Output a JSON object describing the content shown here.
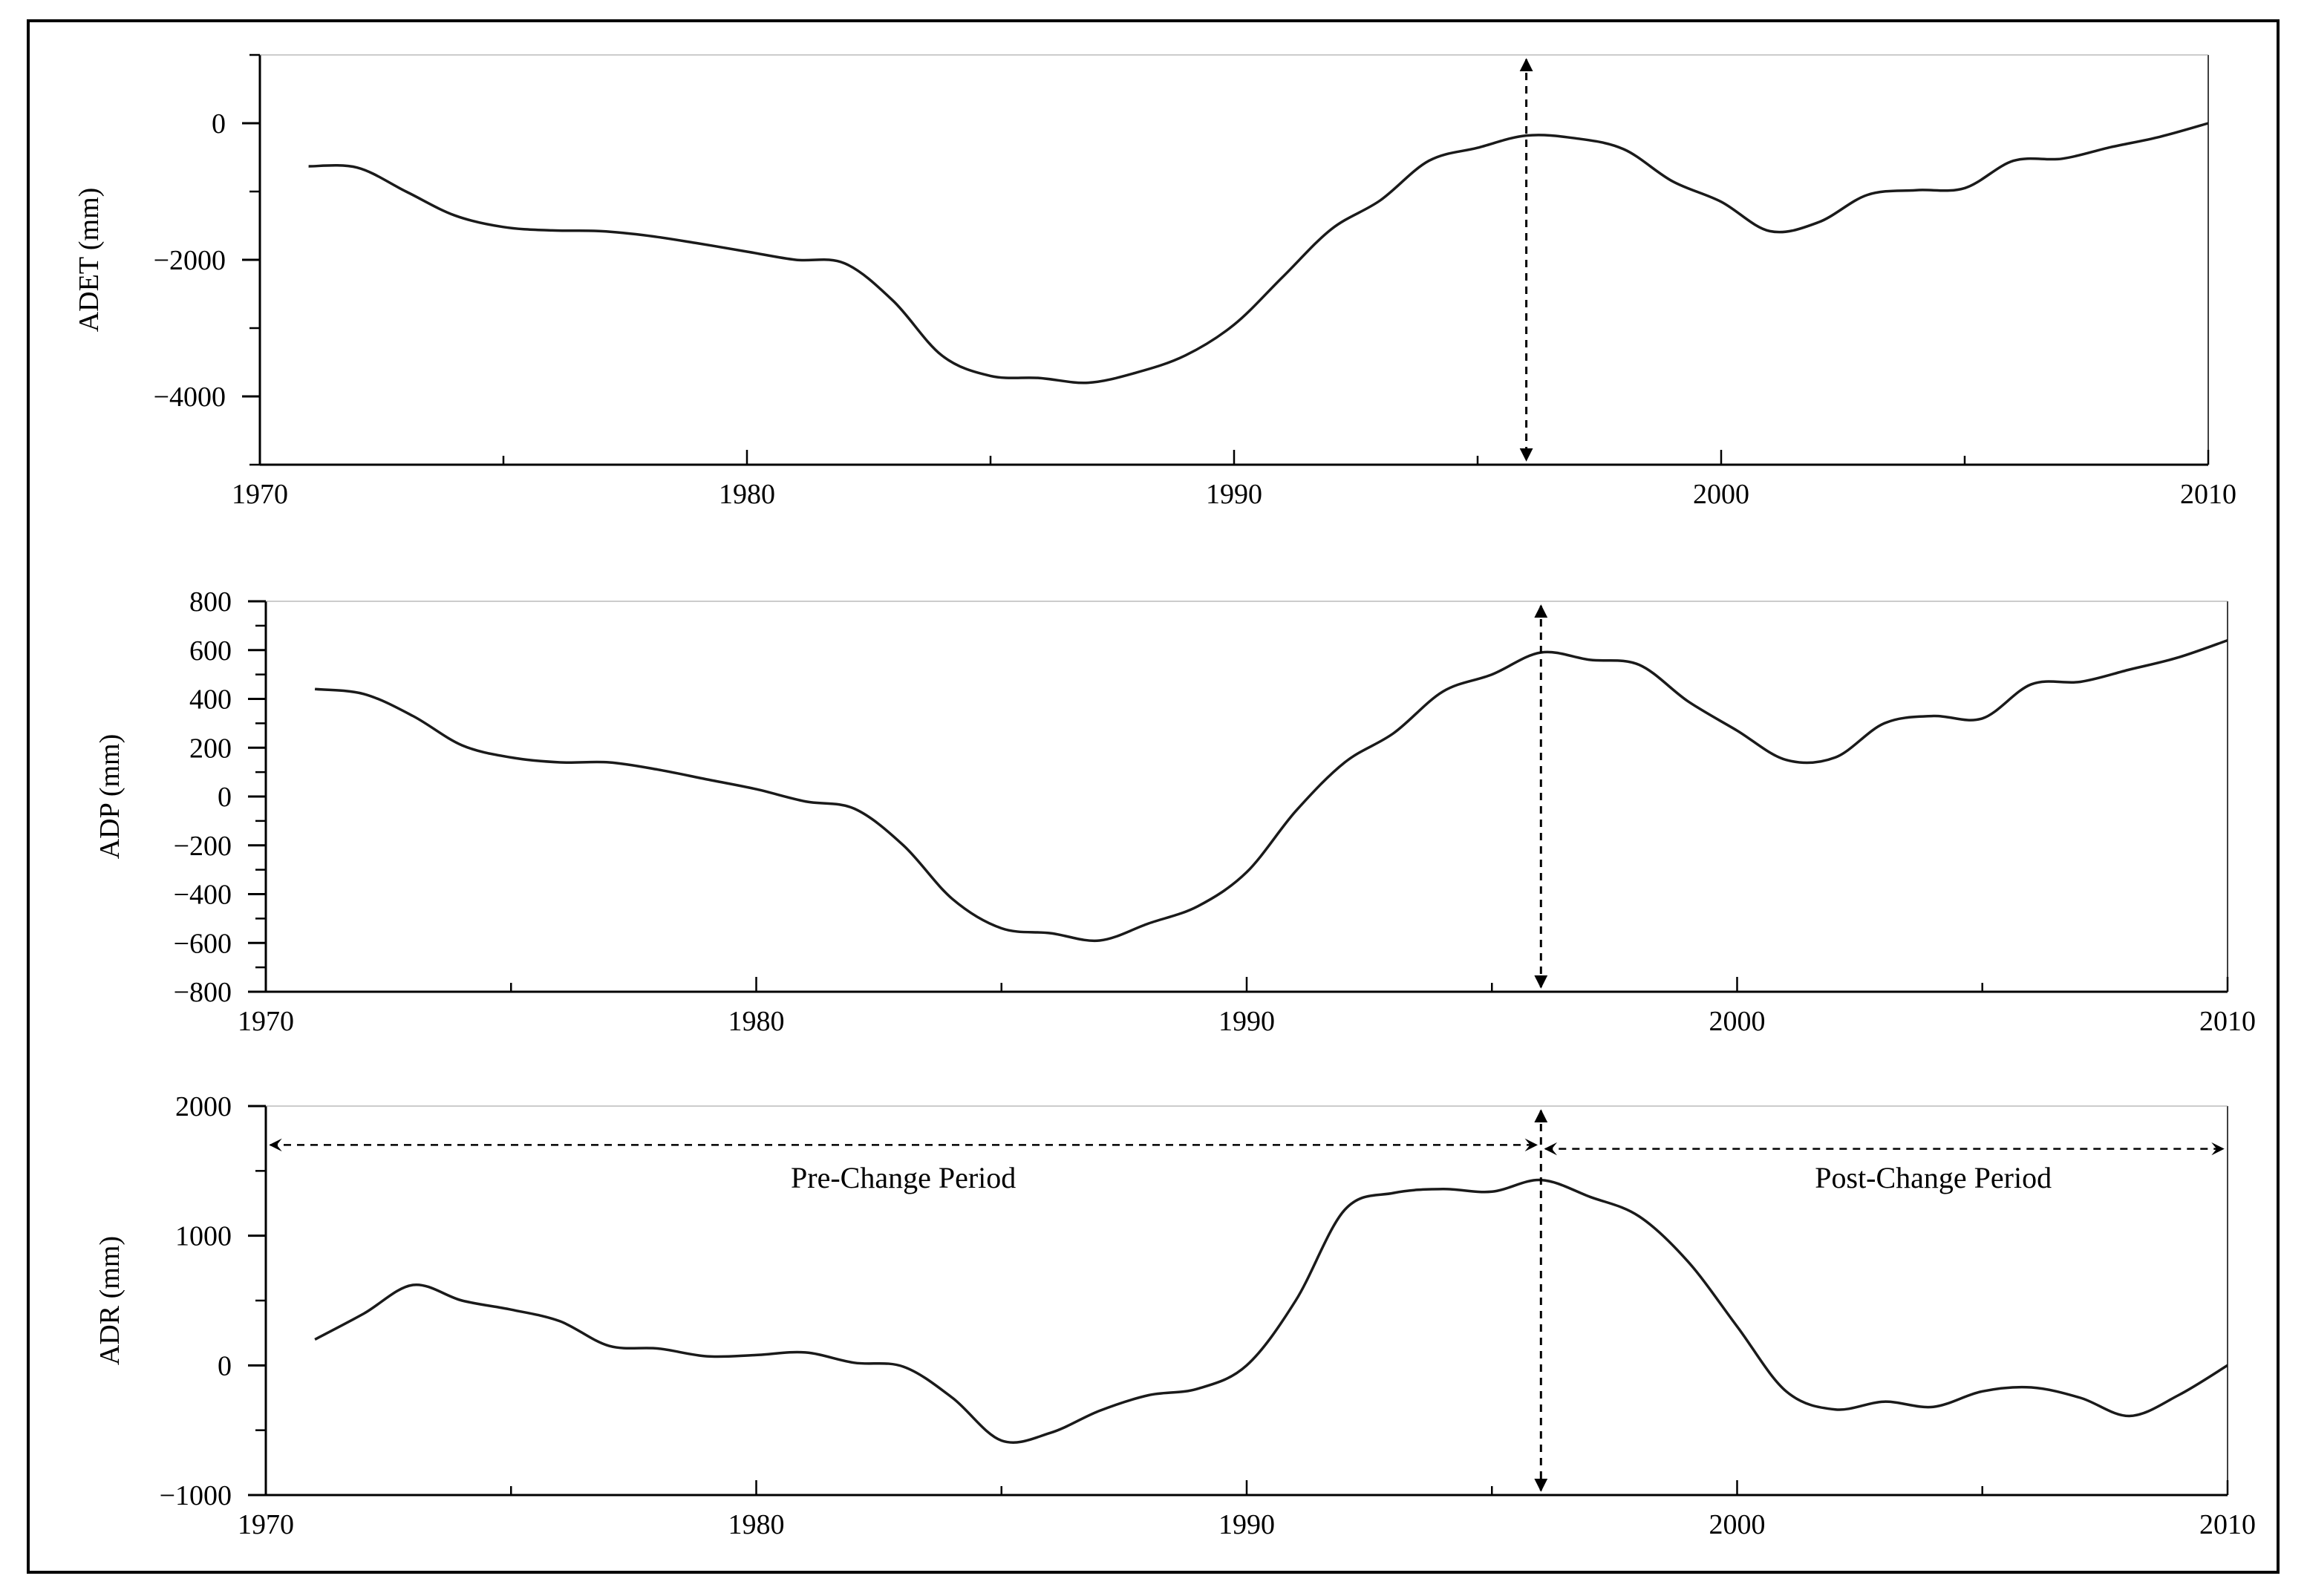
{
  "chart_data": [
    {
      "type": "line",
      "ylabel": "ADET (mm)",
      "xlim": [
        1970,
        2010
      ],
      "ylim": [
        -5000,
        1000
      ],
      "xticks": [
        1970,
        1980,
        1990,
        2000,
        2010
      ],
      "xtick_labels": [
        "1970",
        "1980",
        "1990",
        "2000",
        "2010"
      ],
      "yticks": [
        -4000,
        -2000,
        0
      ],
      "ytick_labels": [
        "−4000",
        "−2000",
        "0"
      ],
      "yminor": [
        -5000,
        -4000,
        -3000,
        -2000,
        -1000,
        0,
        1000
      ],
      "change_year": 1996,
      "series": [
        {
          "x": [
            1971,
            1972,
            1973,
            1974,
            1975,
            1976,
            1977,
            1978,
            1979,
            1980,
            1981,
            1982,
            1983,
            1984,
            1985,
            1986,
            1987,
            1988,
            1989,
            1990,
            1991,
            1992,
            1993,
            1994,
            1995,
            1996,
            1997,
            1998,
            1999,
            2000,
            2001,
            2002,
            2003,
            2004,
            2005,
            2006,
            2007,
            2008,
            2009,
            2010
          ],
          "y": [
            -630,
            -650,
            -1000,
            -1350,
            -1520,
            -1570,
            -1580,
            -1650,
            -1760,
            -1880,
            -2000,
            -2050,
            -2600,
            -3400,
            -3700,
            -3730,
            -3800,
            -3650,
            -3400,
            -2950,
            -2250,
            -1550,
            -1130,
            -550,
            -360,
            -180,
            -220,
            -380,
            -850,
            -1150,
            -1580,
            -1450,
            -1050,
            -980,
            -950,
            -550,
            -520,
            -350,
            -200,
            0
          ]
        }
      ]
    },
    {
      "type": "line",
      "ylabel": "ADP  (mm)",
      "xlim": [
        1970,
        2010
      ],
      "ylim": [
        -800,
        800
      ],
      "xticks": [
        1970,
        1980,
        1990,
        2000,
        2010
      ],
      "xtick_labels": [
        "1970",
        "1980",
        "1990",
        "2000",
        "2010"
      ],
      "yticks": [
        -800,
        -600,
        -400,
        -200,
        0,
        200,
        400,
        600,
        800
      ],
      "ytick_labels": [
        "−800",
        "−600",
        "−400",
        "−200",
        "0",
        "200",
        "400",
        "600",
        "800"
      ],
      "yminor": [
        -800,
        -700,
        -600,
        -500,
        -400,
        -300,
        -200,
        -100,
        0,
        100,
        200,
        300,
        400,
        500,
        600,
        700,
        800
      ],
      "change_year": 1996,
      "series": [
        {
          "x": [
            1971,
            1972,
            1973,
            1974,
            1975,
            1976,
            1977,
            1978,
            1979,
            1980,
            1981,
            1982,
            1983,
            1984,
            1985,
            1986,
            1987,
            1988,
            1989,
            1990,
            1991,
            1992,
            1993,
            1994,
            1995,
            1996,
            1997,
            1998,
            1999,
            2000,
            2001,
            2002,
            2003,
            2004,
            2005,
            2006,
            2007,
            2008,
            2009,
            2010
          ],
          "y": [
            440,
            420,
            330,
            210,
            160,
            140,
            140,
            110,
            70,
            30,
            -20,
            -50,
            -200,
            -420,
            -540,
            -560,
            -590,
            -520,
            -450,
            -310,
            -60,
            140,
            260,
            430,
            500,
            590,
            560,
            540,
            390,
            270,
            150,
            160,
            300,
            330,
            320,
            460,
            470,
            520,
            570,
            640
          ]
        }
      ]
    },
    {
      "type": "line",
      "ylabel": "ADR (mm)",
      "xlim": [
        1970,
        2010
      ],
      "ylim": [
        -1000,
        2000
      ],
      "xticks": [
        1970,
        1980,
        1990,
        2000,
        2010
      ],
      "xtick_labels": [
        "1970",
        "1980",
        "1990",
        "2000",
        "2010"
      ],
      "yticks": [
        -1000,
        0,
        1000,
        2000
      ],
      "ytick_labels": [
        "−1000",
        "0",
        "1000",
        "2000"
      ],
      "yminor": [
        -1000,
        -500,
        0,
        500,
        1000,
        1500,
        2000
      ],
      "change_year": 1996,
      "annotations": [
        {
          "text": "Pre-Change Period",
          "x": 1983,
          "y": 1370
        },
        {
          "text": "Post-Change Period",
          "x": 2004,
          "y": 1370
        }
      ],
      "periods": [
        {
          "from": 1970,
          "to": 1996,
          "y": 1700
        },
        {
          "from": 1996,
          "to": 2010,
          "y": 1670
        }
      ],
      "series": [
        {
          "x": [
            1971,
            1972,
            1973,
            1974,
            1975,
            1976,
            1977,
            1978,
            1979,
            1980,
            1981,
            1982,
            1983,
            1984,
            1985,
            1986,
            1987,
            1988,
            1989,
            1990,
            1991,
            1992,
            1993,
            1994,
            1995,
            1996,
            1997,
            1998,
            1999,
            2000,
            2001,
            2002,
            2003,
            2004,
            2005,
            2006,
            2007,
            2008,
            2009,
            2010
          ],
          "y": [
            200,
            400,
            620,
            500,
            430,
            340,
            150,
            130,
            70,
            80,
            100,
            20,
            -10,
            -250,
            -580,
            -520,
            -350,
            -230,
            -180,
            0,
            500,
            1200,
            1330,
            1360,
            1340,
            1430,
            1300,
            1150,
            800,
            300,
            -200,
            -340,
            -280,
            -320,
            -200,
            -170,
            -250,
            -390,
            -230,
            0
          ]
        }
      ]
    }
  ]
}
